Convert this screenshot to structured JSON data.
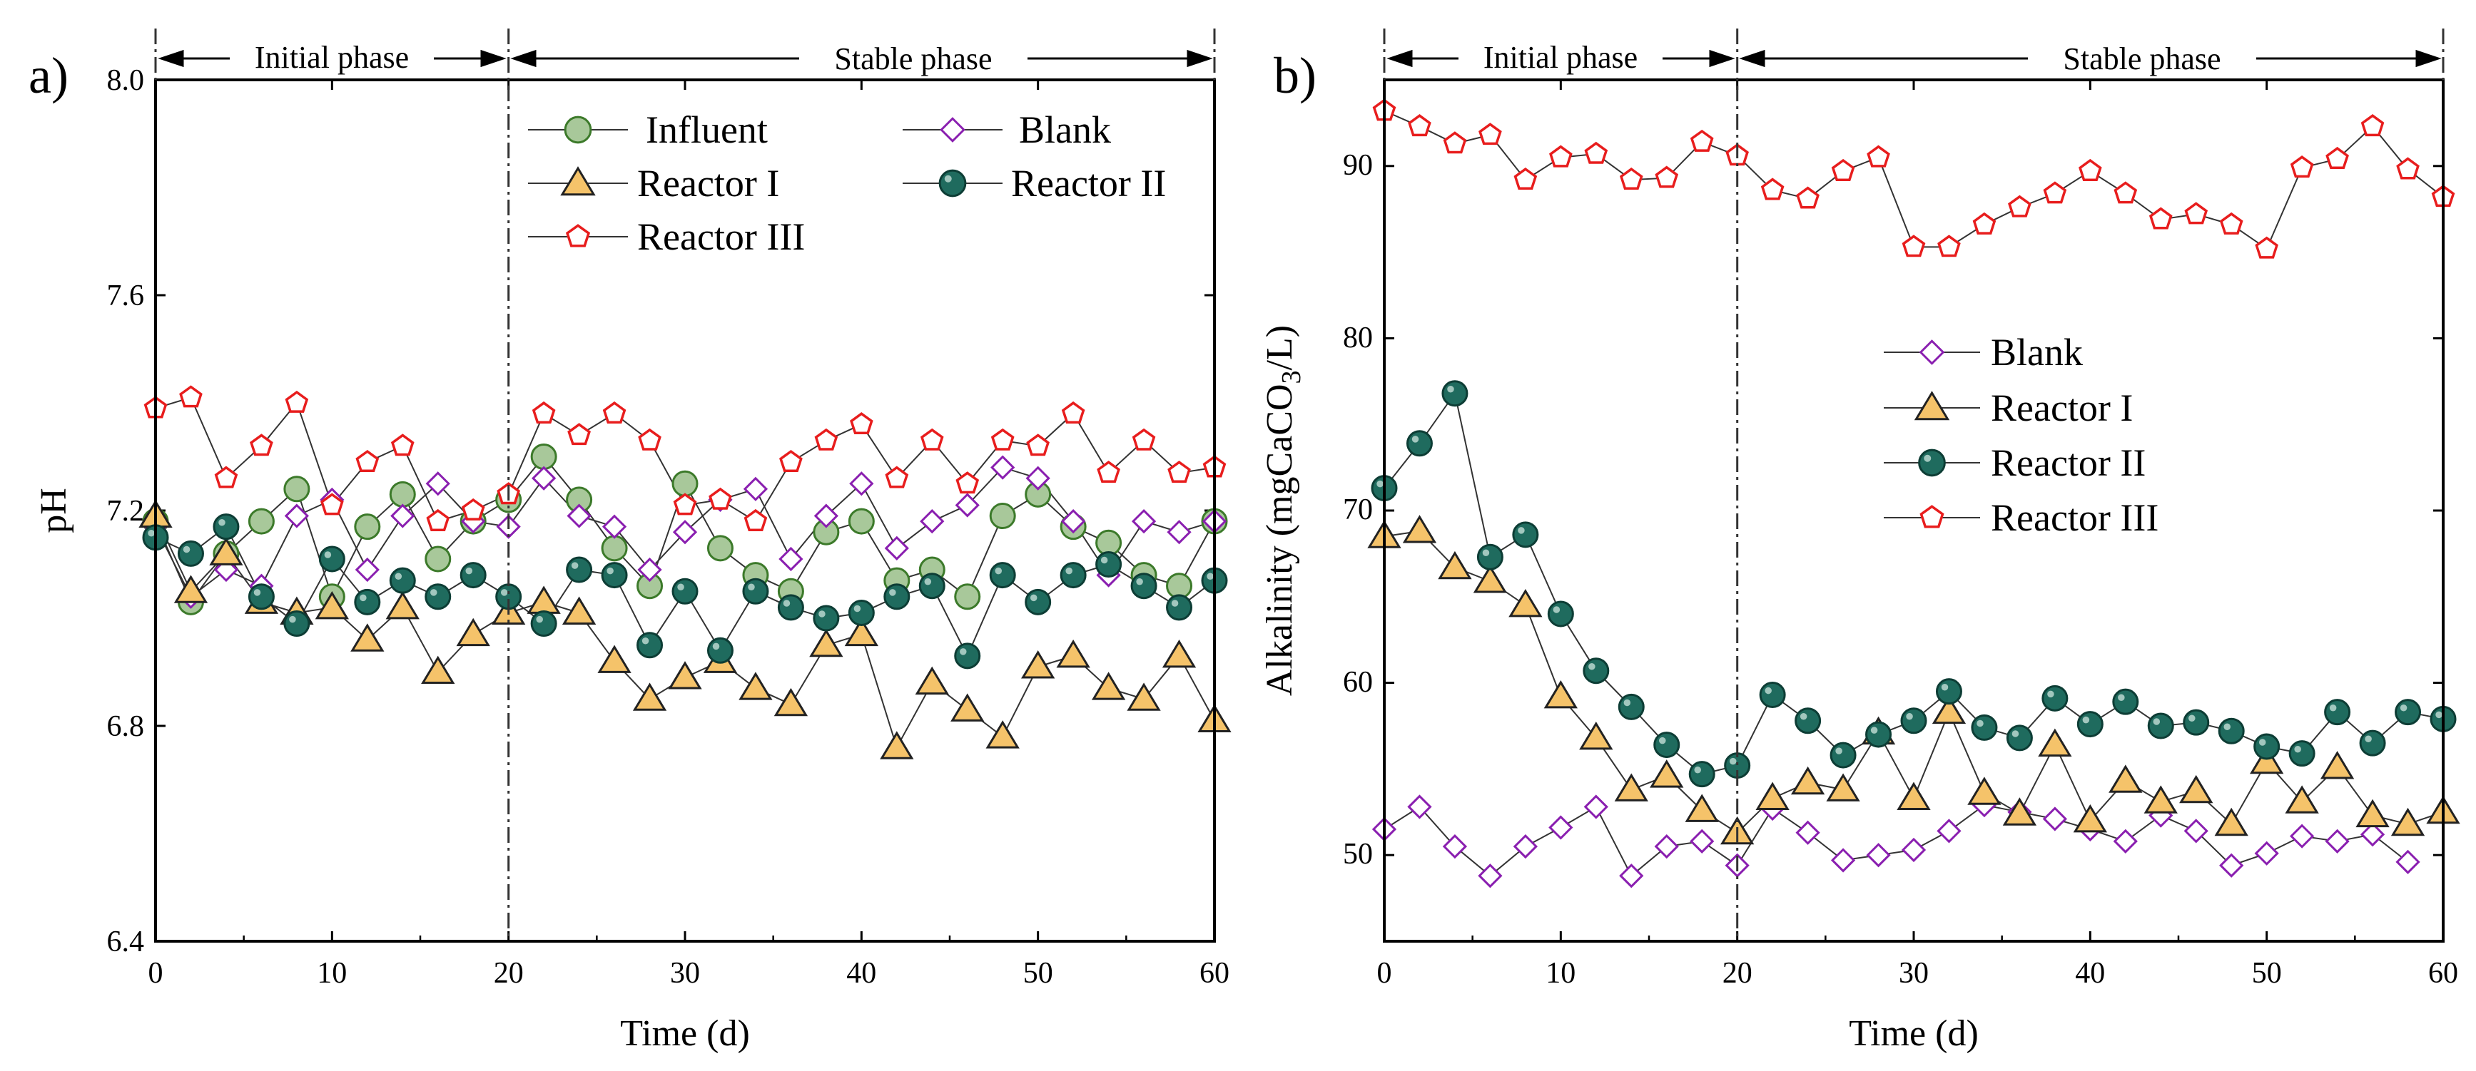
{
  "colors": {
    "influent_fill": "#a8c89a",
    "influent_stroke": "#3c7a2a",
    "blank_stroke": "#8a1fb0",
    "reactor1_fill": "#f5c36a",
    "reactor1_stroke": "#222222",
    "reactor2_fill": "#1f6b5e",
    "reactor2_stroke": "#0d3d35",
    "reactor3_stroke": "#e81d1d",
    "line": "#333333"
  },
  "chart_data": [
    {
      "type": "line",
      "panel_label": "a)",
      "xlabel": "Time (d)",
      "ylabel": "pH",
      "xlim": [
        0,
        60
      ],
      "ylim": [
        6.4,
        8.0
      ],
      "x_ticks": [
        "0",
        "10",
        "20",
        "30",
        "40",
        "50",
        "60"
      ],
      "y_ticks": [
        "6.4",
        "6.8",
        "7.2",
        "7.6",
        "8.0"
      ],
      "phase_divider_x": 20,
      "phases": [
        "Initial phase",
        "Stable phase"
      ],
      "x": [
        0,
        2,
        4,
        6,
        8,
        10,
        12,
        14,
        16,
        18,
        20,
        22,
        24,
        26,
        28,
        30,
        32,
        34,
        36,
        38,
        40,
        42,
        44,
        46,
        48,
        50,
        52,
        54,
        56,
        58,
        60
      ],
      "series": [
        {
          "name": "Influent",
          "key": "influent",
          "values": [
            7.18,
            7.03,
            7.12,
            7.18,
            7.24,
            7.04,
            7.17,
            7.23,
            7.11,
            7.18,
            7.22,
            7.3,
            7.22,
            7.13,
            7.06,
            7.25,
            7.13,
            7.08,
            7.05,
            7.16,
            7.18,
            7.07,
            7.09,
            7.04,
            7.19,
            7.23,
            7.17,
            7.14,
            7.08,
            7.06,
            7.18
          ]
        },
        {
          "name": "Blank",
          "key": "blank",
          "values": [
            7.17,
            7.04,
            7.09,
            7.06,
            7.19,
            7.22,
            7.09,
            7.19,
            7.25,
            7.18,
            7.17,
            7.26,
            7.19,
            7.17,
            7.09,
            7.16,
            7.22,
            7.24,
            7.11,
            7.19,
            7.25,
            7.13,
            7.18,
            7.21,
            7.28,
            7.26,
            7.18,
            7.08,
            7.18,
            7.16,
            7.18
          ]
        },
        {
          "name": "Reactor I",
          "key": "reactor1",
          "values": [
            7.19,
            7.05,
            7.12,
            7.03,
            7.01,
            7.02,
            6.96,
            7.02,
            6.9,
            6.97,
            7.01,
            7.03,
            7.01,
            6.92,
            6.85,
            6.89,
            6.92,
            6.87,
            6.84,
            6.95,
            6.97,
            6.76,
            6.88,
            6.83,
            6.78,
            6.91,
            6.93,
            6.87,
            6.85,
            6.93,
            6.81
          ]
        },
        {
          "name": "Reactor II",
          "key": "reactor2",
          "values": [
            7.15,
            7.12,
            7.17,
            7.04,
            6.99,
            7.11,
            7.03,
            7.07,
            7.04,
            7.08,
            7.04,
            6.99,
            7.09,
            7.08,
            6.95,
            7.05,
            6.94,
            7.05,
            7.02,
            7.0,
            7.01,
            7.04,
            7.06,
            6.93,
            7.08,
            7.03,
            7.08,
            7.1,
            7.06,
            7.02,
            7.07
          ]
        },
        {
          "name": "Reactor III",
          "key": "reactor3",
          "values": [
            7.39,
            7.41,
            7.26,
            7.32,
            7.4,
            7.21,
            7.29,
            7.32,
            7.18,
            7.2,
            7.23,
            7.38,
            7.34,
            7.38,
            7.33,
            7.21,
            7.22,
            7.18,
            7.29,
            7.33,
            7.36,
            7.26,
            7.33,
            7.25,
            7.33,
            7.32,
            7.38,
            7.27,
            7.33,
            7.27,
            7.28
          ]
        }
      ],
      "legend": {
        "placement": "top-right",
        "items": [
          "Influent",
          "Blank",
          "Reactor I",
          "Reactor II",
          "Reactor III"
        ]
      }
    },
    {
      "type": "line",
      "panel_label": "b)",
      "xlabel": "Time (d)",
      "ylabel_main": "Alkalinity (mgCaCO",
      "ylabel_sub": "3",
      "ylabel_end": "/L)",
      "xlim": [
        0,
        60
      ],
      "ylim": [
        45,
        95
      ],
      "x_ticks": [
        "0",
        "10",
        "20",
        "30",
        "40",
        "50",
        "60"
      ],
      "y_ticks": [
        "50",
        "60",
        "70",
        "80",
        "90"
      ],
      "phase_divider_x": 20,
      "phases": [
        "Initial phase",
        "Stable phase"
      ],
      "x": [
        0,
        2,
        4,
        6,
        8,
        10,
        12,
        14,
        16,
        18,
        20,
        22,
        24,
        26,
        28,
        30,
        32,
        34,
        36,
        38,
        40,
        42,
        44,
        46,
        48,
        50,
        52,
        54,
        56,
        58,
        60
      ],
      "series": [
        {
          "name": "Blank",
          "key": "blank",
          "x": [
            0,
            2,
            4,
            6,
            8,
            10,
            12,
            14,
            16,
            18,
            20,
            22,
            24,
            26,
            28,
            30,
            32,
            34,
            36,
            38,
            40,
            42,
            44,
            46,
            48,
            50,
            52,
            54,
            56,
            58
          ],
          "values": [
            51.5,
            52.8,
            50.5,
            48.8,
            50.5,
            51.6,
            52.8,
            48.8,
            50.5,
            50.8,
            49.4,
            52.7,
            51.3,
            49.7,
            50.0,
            50.3,
            51.4,
            52.9,
            52.5,
            52.1,
            51.5,
            50.8,
            52.3,
            51.4,
            49.4,
            50.1,
            51.1,
            50.8,
            51.2,
            49.6
          ]
        },
        {
          "name": "Reactor I",
          "key": "reactor1",
          "values": [
            68.5,
            68.8,
            66.7,
            65.9,
            64.5,
            59.2,
            56.8,
            53.8,
            54.6,
            52.6,
            51.3,
            53.3,
            54.2,
            53.8,
            57.1,
            53.3,
            58.3,
            53.6,
            52.4,
            56.4,
            52.0,
            54.3,
            53.1,
            53.7,
            51.8,
            55.4,
            53.1,
            55.1,
            52.3,
            51.8,
            52.5
          ]
        },
        {
          "name": "Reactor II",
          "key": "reactor2",
          "values": [
            71.3,
            73.9,
            76.8,
            67.3,
            68.6,
            64.0,
            60.7,
            58.6,
            56.4,
            54.7,
            55.2,
            59.3,
            57.8,
            55.8,
            57.0,
            57.8,
            59.5,
            57.4,
            56.8,
            59.1,
            57.6,
            58.9,
            57.5,
            57.7,
            57.2,
            56.3,
            55.9,
            58.3,
            56.5,
            58.3,
            57.9
          ]
        },
        {
          "name": "Reactor III",
          "key": "reactor3",
          "values": [
            93.2,
            92.3,
            91.3,
            91.8,
            89.2,
            90.5,
            90.7,
            89.2,
            89.3,
            91.4,
            90.6,
            88.6,
            88.1,
            89.7,
            90.5,
            85.3,
            85.3,
            86.6,
            87.6,
            88.4,
            89.7,
            88.4,
            86.9,
            87.2,
            86.6,
            85.2,
            89.9,
            90.4,
            92.3,
            89.8,
            88.2
          ]
        }
      ],
      "legend": {
        "placement": "center",
        "items": [
          "Blank",
          "Reactor I",
          "Reactor II",
          "Reactor III"
        ]
      }
    }
  ]
}
